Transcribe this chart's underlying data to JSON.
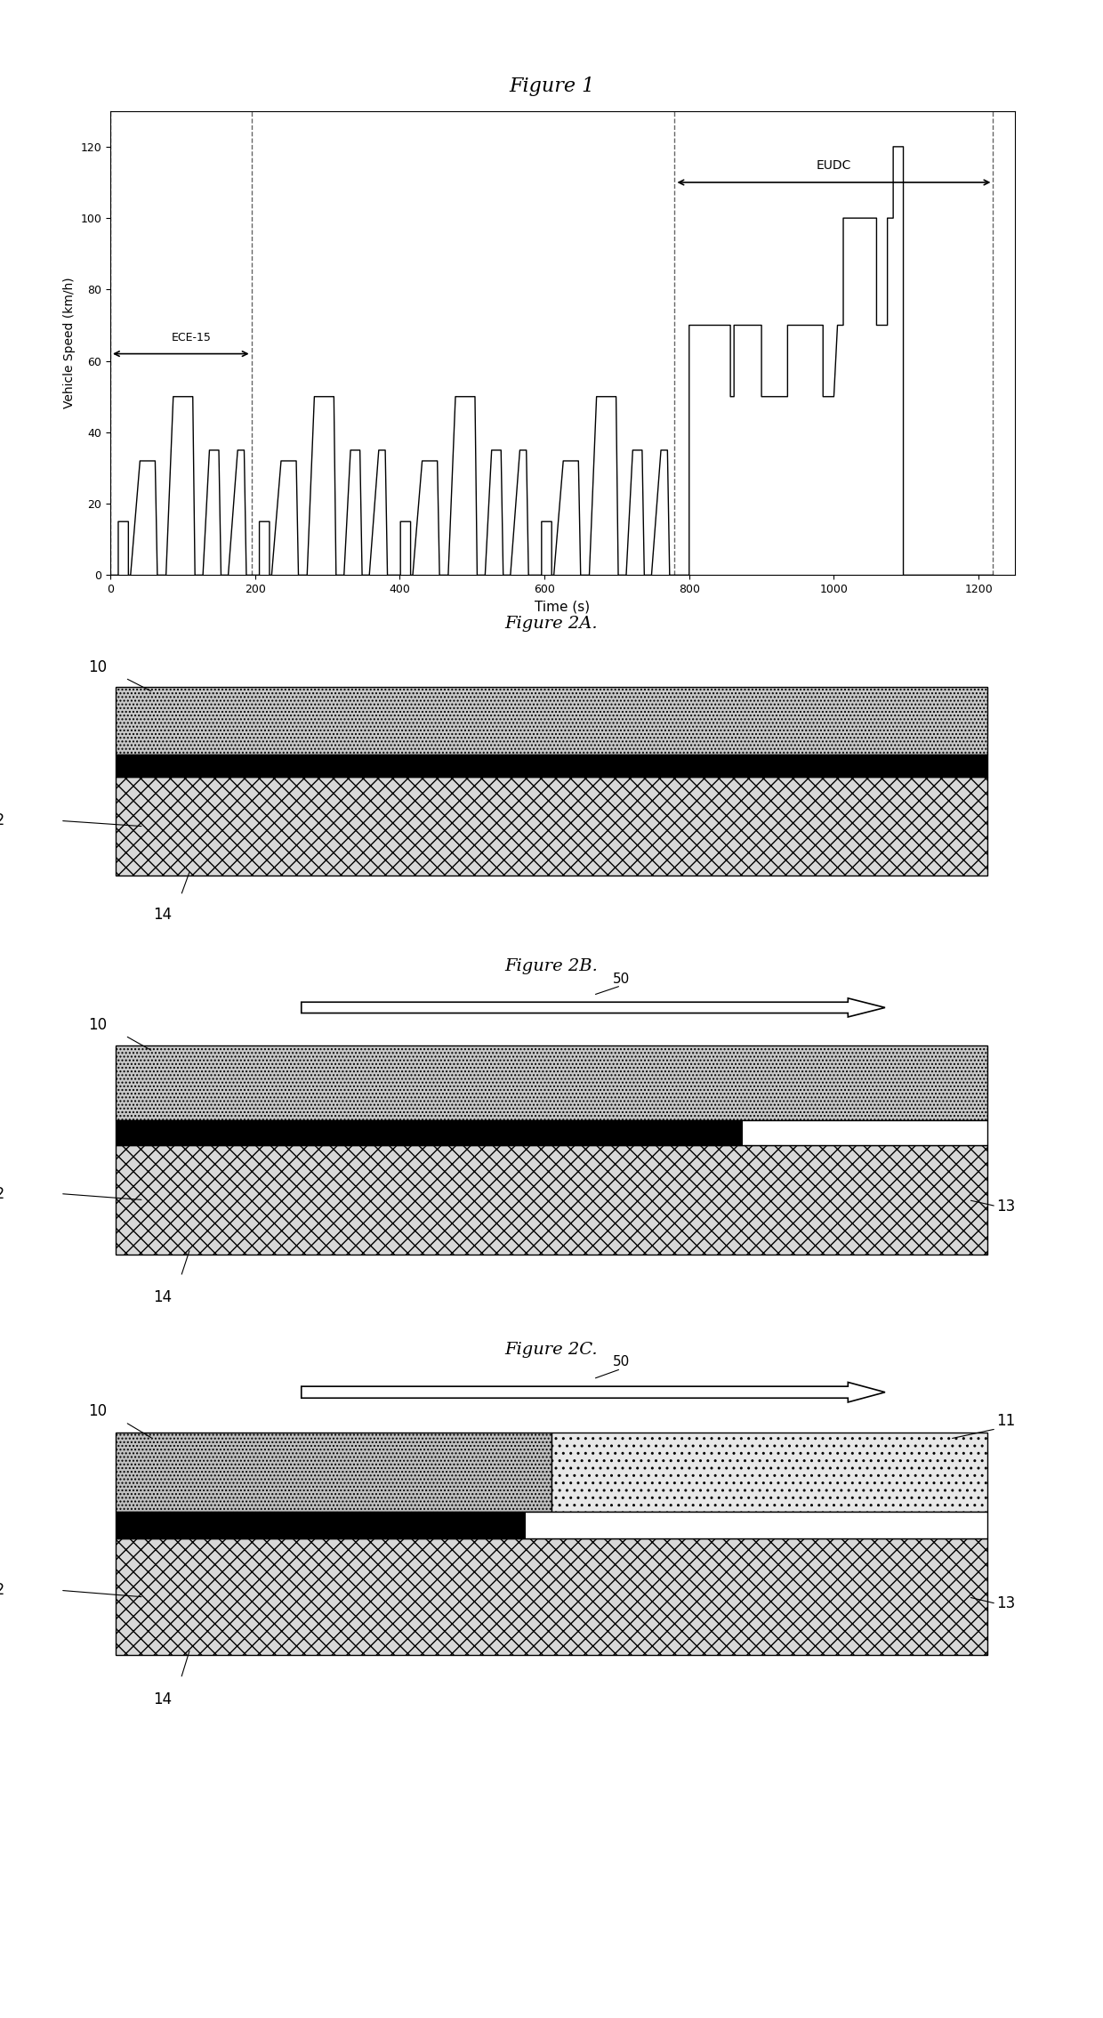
{
  "fig1_title": "Figure 1",
  "fig2a_title": "Figure 2A.",
  "fig2b_title": "Figure 2B.",
  "fig2c_title": "Figure 2C.",
  "xlabel": "Time (s)",
  "ylabel": "Vehicle Speed (km/h)",
  "ylim": [
    0,
    130
  ],
  "xlim": [
    0,
    1250
  ],
  "yticks": [
    0,
    20,
    40,
    60,
    80,
    100,
    120
  ],
  "xticks": [
    0,
    200,
    400,
    600,
    800,
    1000,
    1200
  ],
  "ece_label": "ECE-15",
  "eudc_label": "EUDC",
  "ece_x_start": 0,
  "ece_x_end": 195,
  "eudc_x_start": 780,
  "eudc_x_end": 1220,
  "background_color": "#ffffff",
  "line_color": "#000000"
}
